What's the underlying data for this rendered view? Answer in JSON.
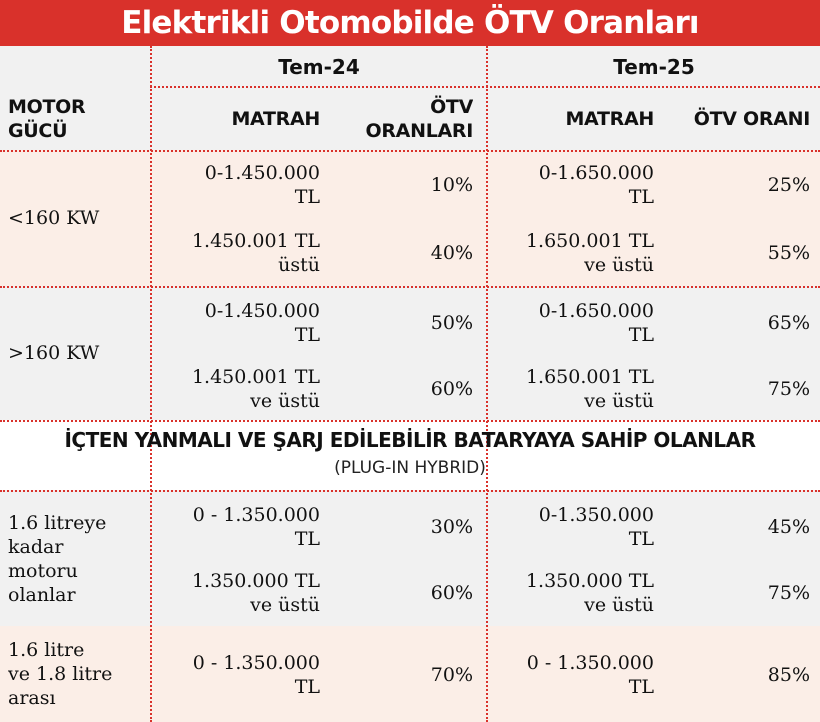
{
  "title": "Elektrikli Otomobilde ÖTV Oranları",
  "periods": [
    "Tem-24",
    "Tem-25"
  ],
  "headers": {
    "motor_line1": "MOTOR",
    "motor_line2": "GÜCÜ",
    "matrah": "MATRAH",
    "otv_oranlari_line1": "ÖTV",
    "otv_oranlari_line2": "ORANLARI",
    "otv_orani": "ÖTV ORANI"
  },
  "electric_rows": [
    {
      "motor": "<160 KW",
      "tiers": [
        {
          "m24_a": "0-1.450.000",
          "m24_b": "TL",
          "r24": "10%",
          "m25_a": "0-1.650.000",
          "m25_b": "TL",
          "r25": "25%"
        },
        {
          "m24_a": "1.450.001 TL",
          "m24_b": "üstü",
          "r24": "40%",
          "m25_a": "1.650.001 TL",
          "m25_b": "ve üstü",
          "r25": "55%"
        }
      ]
    },
    {
      "motor": ">160 KW",
      "tiers": [
        {
          "m24_a": "0-1.450.000",
          "m24_b": "TL",
          "r24": "50%",
          "m25_a": "0-1.650.000",
          "m25_b": "TL",
          "r25": "65%"
        },
        {
          "m24_a": "1.450.001 TL",
          "m24_b": "ve üstü",
          "r24": "60%",
          "m25_a": "1.650.001 TL",
          "m25_b": "ve üstü",
          "r25": "75%"
        }
      ]
    }
  ],
  "hybrid_section": {
    "title": "İÇTEN YANMALI VE ŞARJ EDİLEBİLİR BATARYAYA SAHİP OLANLAR",
    "subtitle": "(PLUG-IN HYBRID)"
  },
  "hybrid_rows": [
    {
      "motor_lines": [
        "1.6 litreye",
        "kadar",
        "motoru",
        "olanlar"
      ],
      "tiers": [
        {
          "m24_a": "0 - 1.350.000",
          "m24_b": "TL",
          "r24": "30%",
          "m25_a": "0-1.350.000",
          "m25_b": "TL",
          "r25": "45%"
        },
        {
          "m24_a": "1.350.000 TL",
          "m24_b": "ve üstü",
          "r24": "60%",
          "m25_a": "1.350.000 TL",
          "m25_b": "ve üstü",
          "r25": "75%"
        }
      ]
    },
    {
      "motor_lines": [
        "1.6 litre",
        "ve 1.8 litre",
        "arası"
      ],
      "tiers": [
        {
          "m24_a": "0 - 1.350.000",
          "m24_b": "TL",
          "r24": "70%",
          "m25_a": "0 - 1.350.000",
          "m25_b": "TL",
          "r25": "85%"
        }
      ]
    }
  ],
  "colors": {
    "accent": "#d9312b",
    "row_grey": "#f1f1f1",
    "row_pink": "#fbeee7"
  }
}
